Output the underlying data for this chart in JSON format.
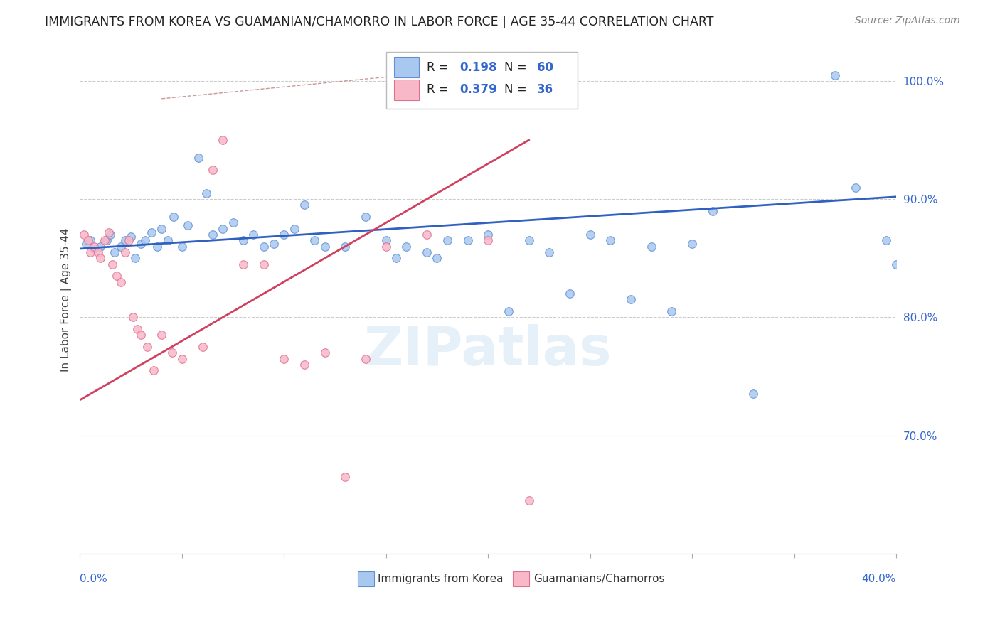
{
  "title": "IMMIGRANTS FROM KOREA VS GUAMANIAN/CHAMORRO IN LABOR FORCE | AGE 35-44 CORRELATION CHART",
  "source": "Source: ZipAtlas.com",
  "ylabel": "In Labor Force | Age 35-44",
  "legend_blue_R": "0.198",
  "legend_blue_N": "60",
  "legend_pink_R": "0.379",
  "legend_pink_N": "36",
  "blue_label": "Immigrants from Korea",
  "pink_label": "Guamanians/Chamorros",
  "watermark": "ZIPatlas",
  "xmin": 0,
  "xmax": 40,
  "ymin": 60,
  "ymax": 103,
  "yticks": [
    70,
    80,
    90,
    100
  ],
  "blue_scatter_color_face": "#a8c8f0",
  "blue_scatter_color_edge": "#6090d0",
  "pink_scatter_color_face": "#f8b8c8",
  "pink_scatter_color_edge": "#e07090",
  "trend_blue_color": "#3060c0",
  "trend_pink_color": "#d04060",
  "dashed_color": "#cc9999",
  "blue_trend_x0": 0,
  "blue_trend_y0": 85.8,
  "blue_trend_x1": 40,
  "blue_trend_y1": 90.2,
  "pink_trend_x0": 0,
  "pink_trend_y0": 73.0,
  "pink_trend_x1": 22,
  "pink_trend_y1": 95.0,
  "dashed_x0": 4,
  "dashed_y0": 98.5,
  "dashed_x1": 19,
  "dashed_y1": 101.0,
  "blue_points_x": [
    0.3,
    0.5,
    0.7,
    1.0,
    1.3,
    1.5,
    1.7,
    2.0,
    2.2,
    2.5,
    2.7,
    3.0,
    3.2,
    3.5,
    3.8,
    4.0,
    4.3,
    4.6,
    5.0,
    5.3,
    5.8,
    6.2,
    6.5,
    7.0,
    7.5,
    8.0,
    8.5,
    9.0,
    9.5,
    10.0,
    10.5,
    11.0,
    11.5,
    12.0,
    13.0,
    14.0,
    15.0,
    15.5,
    16.0,
    17.0,
    17.5,
    18.0,
    19.0,
    20.0,
    21.0,
    22.0,
    23.0,
    24.0,
    25.0,
    26.0,
    27.0,
    28.0,
    29.0,
    30.0,
    31.0,
    33.0,
    37.0,
    38.0,
    39.5,
    40.0
  ],
  "blue_points_y": [
    86.2,
    86.5,
    85.8,
    86.0,
    86.5,
    87.0,
    85.5,
    86.0,
    86.5,
    86.8,
    85.0,
    86.2,
    86.5,
    87.2,
    86.0,
    87.5,
    86.5,
    88.5,
    86.0,
    87.8,
    93.5,
    90.5,
    87.0,
    87.5,
    88.0,
    86.5,
    87.0,
    86.0,
    86.2,
    87.0,
    87.5,
    89.5,
    86.5,
    86.0,
    86.0,
    88.5,
    86.5,
    85.0,
    86.0,
    85.5,
    85.0,
    86.5,
    86.5,
    87.0,
    80.5,
    86.5,
    85.5,
    82.0,
    87.0,
    86.5,
    81.5,
    86.0,
    80.5,
    86.2,
    89.0,
    73.5,
    100.5,
    91.0,
    86.5,
    84.5
  ],
  "pink_points_x": [
    0.2,
    0.4,
    0.5,
    0.7,
    0.9,
    1.0,
    1.2,
    1.4,
    1.6,
    1.8,
    2.0,
    2.2,
    2.4,
    2.6,
    2.8,
    3.0,
    3.3,
    3.6,
    4.0,
    4.5,
    5.0,
    6.0,
    6.5,
    7.0,
    8.0,
    9.0,
    10.0,
    11.0,
    12.0,
    13.0,
    14.0,
    15.0,
    16.0,
    17.0,
    20.0,
    22.0
  ],
  "pink_points_y": [
    87.0,
    86.5,
    85.5,
    86.0,
    85.5,
    85.0,
    86.5,
    87.2,
    84.5,
    83.5,
    83.0,
    85.5,
    86.5,
    80.0,
    79.0,
    78.5,
    77.5,
    75.5,
    78.5,
    77.0,
    76.5,
    77.5,
    92.5,
    95.0,
    84.5,
    84.5,
    76.5,
    76.0,
    77.0,
    66.5,
    76.5,
    86.0,
    100.5,
    87.0,
    86.5,
    64.5
  ]
}
